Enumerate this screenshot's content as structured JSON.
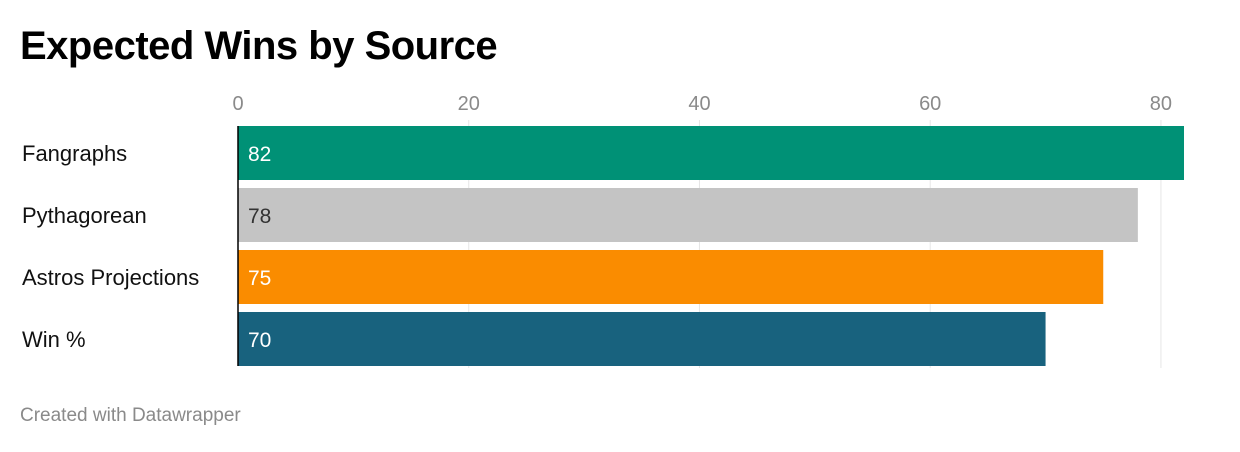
{
  "title": "Expected Wins by Source",
  "footer": "Created with Datawrapper",
  "chart_data": {
    "type": "bar",
    "orientation": "horizontal",
    "categories": [
      "Fangraphs",
      "Pythagorean",
      "Astros Projections",
      "Win %"
    ],
    "values": [
      82,
      78,
      75,
      70
    ],
    "bar_colors": [
      "#009176",
      "#c4c4c4",
      "#fa8c00",
      "#18627e"
    ],
    "value_label_colors": [
      "#ffffff",
      "#333333",
      "#ffffff",
      "#ffffff"
    ],
    "xticks": [
      0,
      20,
      40,
      60,
      80
    ],
    "xlim": [
      0,
      82
    ],
    "grid": true,
    "gridline_color": "#e6e6e6",
    "axis_line_color": "#000000"
  }
}
